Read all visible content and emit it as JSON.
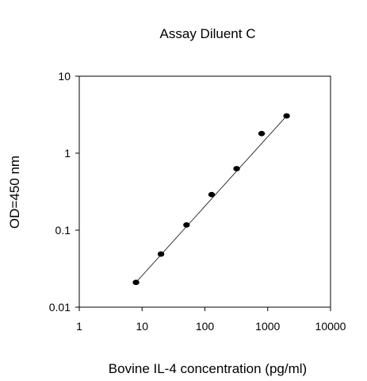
{
  "chart_data": {
    "type": "scatter",
    "title": "Assay Diluent C",
    "xlabel": "Bovine IL-4 concentration (pg/ml)",
    "ylabel": "OD=450 nm",
    "x_scale": "log",
    "y_scale": "log",
    "xlim": [
      1,
      10000
    ],
    "ylim": [
      0.01,
      10
    ],
    "x_ticks": [
      "1",
      "10",
      "100",
      "1000",
      "10000"
    ],
    "y_ticks": [
      "0.01",
      "0.1",
      "1",
      "10"
    ],
    "grid": false,
    "legend": "none",
    "series": [
      {
        "x": [
          8,
          20,
          51,
          128,
          320,
          800,
          2000
        ],
        "y": [
          0.021,
          0.049,
          0.117,
          0.29,
          0.63,
          1.8,
          3.05
        ]
      }
    ],
    "fit_line": {
      "x": [
        8,
        2000
      ],
      "y": [
        0.021,
        3.05
      ]
    },
    "colors": {
      "marker": "#000000",
      "line": "#000000"
    }
  }
}
